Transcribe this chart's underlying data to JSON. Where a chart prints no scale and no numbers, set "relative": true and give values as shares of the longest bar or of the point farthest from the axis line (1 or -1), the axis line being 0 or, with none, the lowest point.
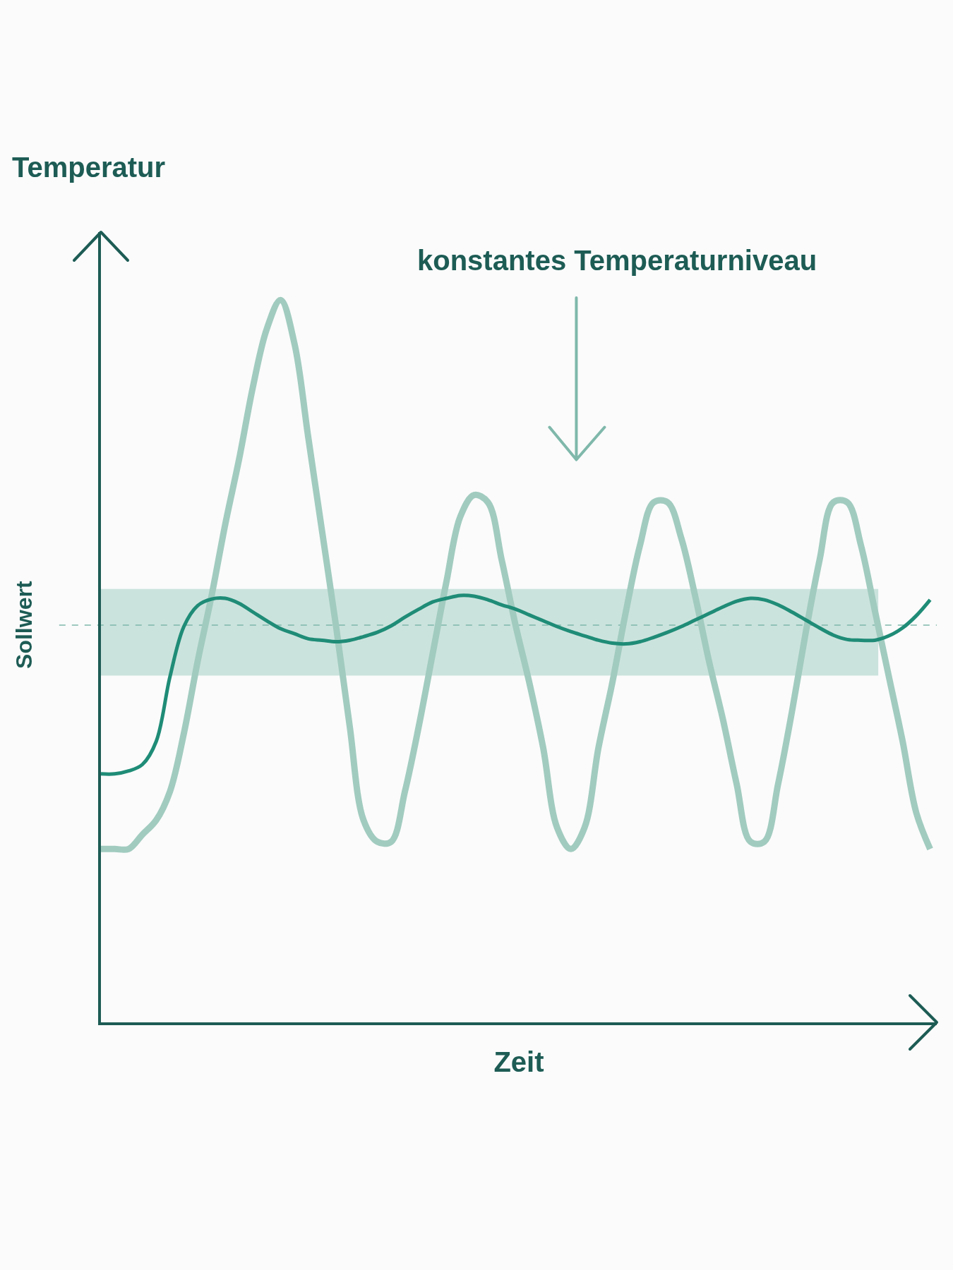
{
  "chart_data": {
    "type": "line",
    "relative": true,
    "ylabel": "Temperatur",
    "xlabel": "Zeit",
    "tick_labels": false,
    "grid": false,
    "legend": false,
    "categories": [
      null,
      null,
      null,
      null,
      null,
      null,
      null,
      null,
      null,
      null,
      null,
      null,
      null,
      null,
      null,
      null,
      null,
      null,
      null,
      null,
      null,
      null,
      null,
      null,
      null,
      null,
      null,
      null,
      null,
      null,
      null,
      null,
      null,
      null,
      null,
      null,
      null,
      null,
      null,
      null,
      null,
      null,
      null,
      null,
      null,
      null,
      null,
      null,
      null,
      null,
      null,
      null,
      null,
      null,
      null,
      null,
      null,
      null,
      null,
      null,
      null
    ],
    "series": [
      {
        "color": "#a1cbbf",
        "values": [
          0.24,
          0.24,
          0.24,
          0.26,
          0.28,
          0.32,
          0.4,
          0.5,
          0.59,
          0.69,
          0.78,
          0.88,
          0.96,
          1.0,
          0.94,
          0.81,
          0.68,
          0.55,
          0.41,
          0.28,
          0.25,
          0.25,
          0.32,
          0.41,
          0.51,
          0.61,
          0.7,
          0.73,
          0.72,
          0.64,
          0.55,
          0.47,
          0.38,
          0.27,
          0.24,
          0.27,
          0.38,
          0.47,
          0.57,
          0.66,
          0.72,
          0.72,
          0.67,
          0.59,
          0.5,
          0.42,
          0.33,
          0.25,
          0.25,
          0.33,
          0.43,
          0.54,
          0.64,
          0.72,
          0.72,
          0.66,
          0.57,
          0.48,
          0.39,
          0.29,
          0.24
        ]
      },
      {
        "color": "#1f8c77",
        "values": [
          0.344,
          0.344,
          0.348,
          0.357,
          0.389,
          0.479,
          0.548,
          0.577,
          0.586,
          0.587,
          0.58,
          0.568,
          0.556,
          0.545,
          0.538,
          0.531,
          0.529,
          0.527,
          0.529,
          0.534,
          0.54,
          0.549,
          0.561,
          0.572,
          0.582,
          0.587,
          0.591,
          0.59,
          0.585,
          0.578,
          0.572,
          0.564,
          0.556,
          0.548,
          0.541,
          0.535,
          0.529,
          0.525,
          0.524,
          0.527,
          0.533,
          0.54,
          0.548,
          0.557,
          0.566,
          0.575,
          0.583,
          0.587,
          0.585,
          0.578,
          0.568,
          0.557,
          0.546,
          0.536,
          0.53,
          0.529,
          0.529,
          0.535,
          0.546,
          0.563,
          0.585
        ]
      }
    ],
    "ref_lines": [
      {
        "axis": "y",
        "value": 0.55,
        "label": "Sollwert",
        "line_style": "dashed",
        "color": "#7fb8ab"
      }
    ],
    "bands": [
      {
        "axis": "y",
        "from": 0.48,
        "to": 0.6,
        "color": "#c2ded7"
      }
    ],
    "annotations": [
      "konstantes Temperaturniveau"
    ]
  }
}
